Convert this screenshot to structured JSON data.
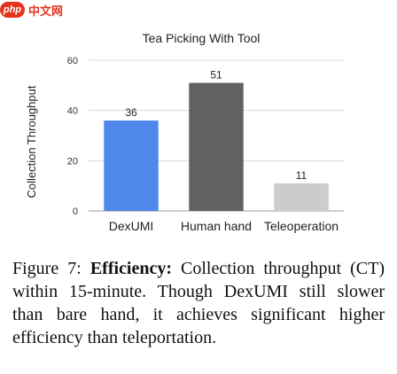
{
  "watermark": {
    "logo_text": "php",
    "site_text": "中文网"
  },
  "chart_data": {
    "type": "bar",
    "title": "Tea Picking With Tool",
    "xlabel": "",
    "ylabel": "Collection Throughput",
    "categories": [
      "DexUMI",
      "Human hand",
      "Teleoperation"
    ],
    "values": [
      36,
      51,
      11
    ],
    "value_labels": [
      "36",
      "51",
      "11"
    ],
    "colors": [
      "#4e88ea",
      "#616161",
      "#cccccc"
    ],
    "ylim": [
      0,
      60
    ],
    "yticks": [
      0,
      20,
      40,
      60
    ],
    "ytick_labels": [
      "0",
      "20",
      "40",
      "60"
    ],
    "grid": true,
    "gridline_color": "#d9d9d9"
  },
  "caption": {
    "label": "Figure 7:",
    "bold": "Efficiency:",
    "text": "Collection throughput (CT) within 15-minute.  Though DexUMI still slower than bare hand, it achieves significant higher efficiency than teleportation."
  }
}
